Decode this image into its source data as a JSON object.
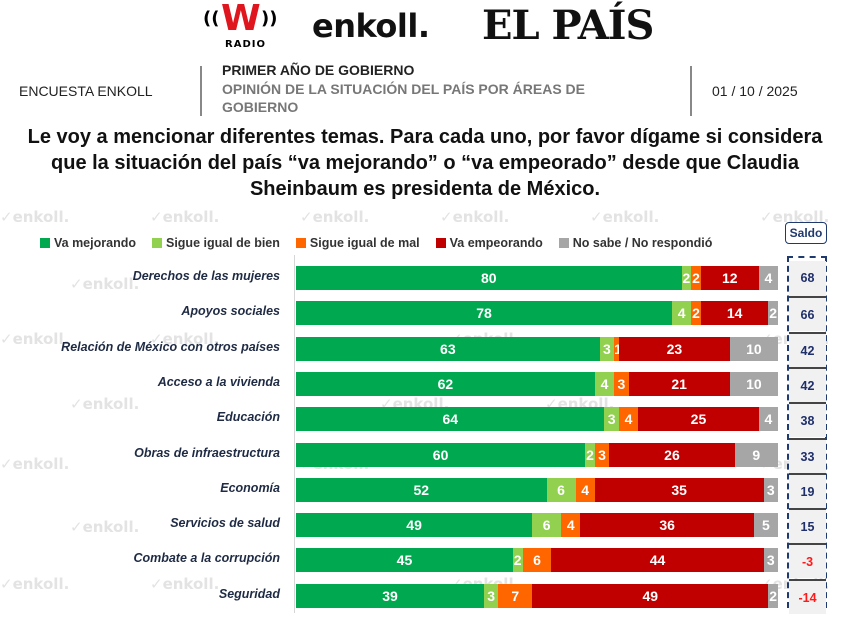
{
  "header": {
    "logos": {
      "wradio": {
        "mark": "W",
        "sub": "RADIO"
      },
      "enkoll": "enkoll.",
      "elpais": "EL PAÍS"
    },
    "survey_label": "ENCUESTA ENKOLL",
    "section_title": "PRIMER AÑO DE GOBIERNO",
    "section_subtitle": "OPINIÓN DE LA SITUACIÓN DEL PAÍS POR ÁREAS DE GOBIERNO",
    "date": "01 / 10 / 2025"
  },
  "question": "Le voy a mencionar diferentes temas. Para cada uno, por favor dígame si considera que la situación del país “va mejorando” o “va empeorado” desde que Claudia Sheinbaum es presidenta de México.",
  "watermark_text": "enkoll.",
  "saldo_label": "Saldo",
  "colors": {
    "va_mejorando": "#00a94f",
    "sigue_igual_bien": "#92d050",
    "sigue_igual_mal": "#ff6600",
    "va_empeorando": "#c00000",
    "no_sabe": "#a6a6a6",
    "saldo_positive": "#1f2f6b",
    "saldo_negative": "#ff1a1a"
  },
  "chart_data": {
    "type": "bar",
    "orientation": "horizontal",
    "stacked": true,
    "title": "Le voy a mencionar diferentes temas. Para cada uno, por favor dígame si considera que la situación del país “va mejorando” o “va empeorado” desde que Claudia Sheinbaum es presidenta de México.",
    "xlabel": "",
    "ylabel": "",
    "xlim": [
      0,
      100
    ],
    "grid": false,
    "legend_position": "top",
    "categories": [
      "Derechos de las mujeres",
      "Apoyos sociales",
      "Relación de México con otros países",
      "Acceso a la vivienda",
      "Educación",
      "Obras de infraestructura",
      "Economía",
      "Servicios de salud",
      "Combate a la corrupción",
      "Seguridad"
    ],
    "series": [
      {
        "name": "Va mejorando",
        "color": "#00a94f",
        "values": [
          80,
          78,
          63,
          62,
          64,
          60,
          52,
          49,
          45,
          39
        ]
      },
      {
        "name": "Sigue igual de bien",
        "color": "#92d050",
        "values": [
          2,
          4,
          3,
          4,
          3,
          2,
          6,
          6,
          2,
          3
        ]
      },
      {
        "name": "Sigue igual de mal",
        "color": "#ff6600",
        "values": [
          2,
          2,
          1,
          3,
          4,
          3,
          4,
          4,
          6,
          7
        ]
      },
      {
        "name": "Va empeorando",
        "color": "#c00000",
        "values": [
          12,
          14,
          23,
          21,
          25,
          26,
          35,
          36,
          44,
          49
        ]
      },
      {
        "name": "No sabe / No respondió",
        "color": "#a6a6a6",
        "values": [
          4,
          2,
          10,
          10,
          4,
          9,
          3,
          5,
          3,
          2
        ]
      }
    ],
    "saldo": {
      "label": "Saldo",
      "values": [
        68,
        66,
        42,
        42,
        38,
        33,
        19,
        15,
        -3,
        -14
      ]
    }
  }
}
